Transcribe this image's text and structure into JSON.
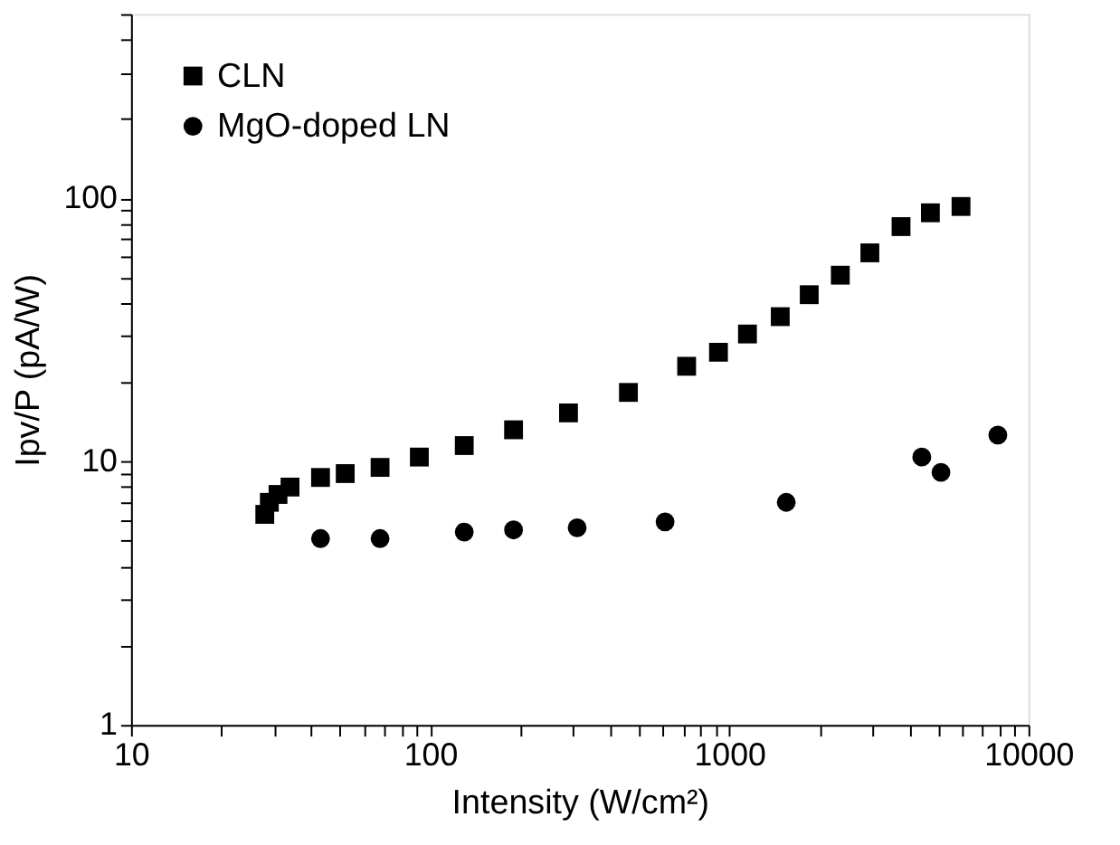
{
  "chart_data": {
    "type": "scatter",
    "xlabel": "Intensity (W/cm²)",
    "ylabel": "Ipv/P (pA/W)",
    "log": "xy",
    "grid": false,
    "legend": "top left",
    "xlim": [
      10,
      10000
    ],
    "ylim": [
      1,
      500
    ],
    "xticks": [
      10,
      {
        "value": 20,
        "label": null
      },
      {
        "value": 30,
        "label": null
      },
      {
        "value": 40,
        "label": null
      },
      {
        "value": 50,
        "label": null
      },
      {
        "value": 60,
        "label": null
      },
      {
        "value": 70,
        "label": null
      },
      {
        "value": 80,
        "label": null
      },
      {
        "value": 90,
        "label": null
      },
      100,
      {
        "value": 200,
        "label": null
      },
      {
        "value": 300,
        "label": null
      },
      {
        "value": 400,
        "label": null
      },
      {
        "value": 500,
        "label": null
      },
      {
        "value": 600,
        "label": null
      },
      {
        "value": 700,
        "label": null
      },
      {
        "value": 800,
        "label": null
      },
      {
        "value": 900,
        "label": null
      },
      1000,
      {
        "value": 2000,
        "label": null
      },
      {
        "value": 3000,
        "label": null
      },
      {
        "value": 4000,
        "label": null
      },
      {
        "value": 5000,
        "label": null
      },
      {
        "value": 6000,
        "label": null
      },
      {
        "value": 7000,
        "label": null
      },
      {
        "value": 8000,
        "label": null
      },
      {
        "value": 9000,
        "label": null
      },
      10000
    ],
    "yticks": [
      1,
      {
        "value": 2,
        "label": null
      },
      {
        "value": 3,
        "label": null
      },
      {
        "value": 4,
        "label": null
      },
      {
        "value": 5,
        "label": null
      },
      {
        "value": 6,
        "label": null
      },
      {
        "value": 7,
        "label": null
      },
      {
        "value": 8,
        "label": null
      },
      {
        "value": 9,
        "label": null
      },
      10,
      {
        "value": 20,
        "label": null
      },
      {
        "value": 30,
        "label": null
      },
      {
        "value": 40,
        "label": null
      },
      {
        "value": 50,
        "label": null
      },
      {
        "value": 60,
        "label": null
      },
      {
        "value": 70,
        "label": null
      },
      {
        "value": 80,
        "label": null
      },
      {
        "value": 90,
        "label": null
      },
      100,
      {
        "value": 200,
        "label": null
      },
      {
        "value": 300,
        "label": null
      },
      {
        "value": 400,
        "label": null
      },
      {
        "value": 500,
        "label": null
      }
    ],
    "series": [
      {
        "name": "CLN",
        "color": "#000000",
        "marker": "square",
        "x": [
          28,
          29,
          31,
          34,
          43,
          52,
          68,
          92,
          130,
          190,
          290,
          460,
          720,
          920,
          1150,
          1480,
          1850,
          2350,
          2950,
          3750,
          4700,
          5950
        ],
        "values": [
          6.3,
          7.0,
          7.5,
          8.0,
          8.7,
          9.0,
          9.5,
          10.4,
          11.5,
          13.2,
          15.3,
          18.3,
          23,
          26,
          30.5,
          35.5,
          43,
          51,
          62,
          78,
          88,
          93
        ]
      },
      {
        "name": "MgO-doped LN",
        "color": "#000000",
        "marker": "circle",
        "x": [
          43,
          68,
          130,
          190,
          310,
          610,
          1550,
          4400,
          5100,
          7900
        ],
        "values": [
          5.1,
          5.1,
          5.4,
          5.5,
          5.6,
          5.9,
          7.0,
          10.4,
          9.1,
          12.6
        ]
      }
    ]
  }
}
